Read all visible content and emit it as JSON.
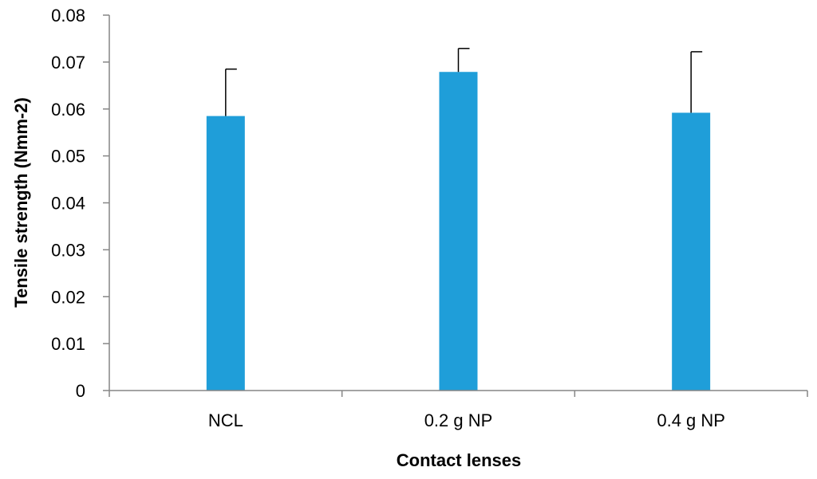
{
  "chart_data": {
    "type": "bar",
    "title": "",
    "xlabel": "Contact lenses",
    "ylabel": "Tensile strength (Nmm-2)",
    "categories": [
      "NCL",
      "0.2 g NP",
      "0.4 g NP"
    ],
    "values": [
      0.0585,
      0.0679,
      0.0592
    ],
    "error_plus": [
      0.01,
      0.005,
      0.013
    ],
    "ylim": [
      0,
      0.08
    ],
    "yticks": [
      0,
      0.01,
      0.02,
      0.03,
      0.04,
      0.05,
      0.06,
      0.07,
      0.08
    ],
    "ytick_labels": [
      "0",
      "0.01",
      "0.02",
      "0.03",
      "0.04",
      "0.05",
      "0.06",
      "0.07",
      "0.08"
    ],
    "bar_color": "#1f9ed9",
    "grid": false,
    "legend": "none"
  }
}
